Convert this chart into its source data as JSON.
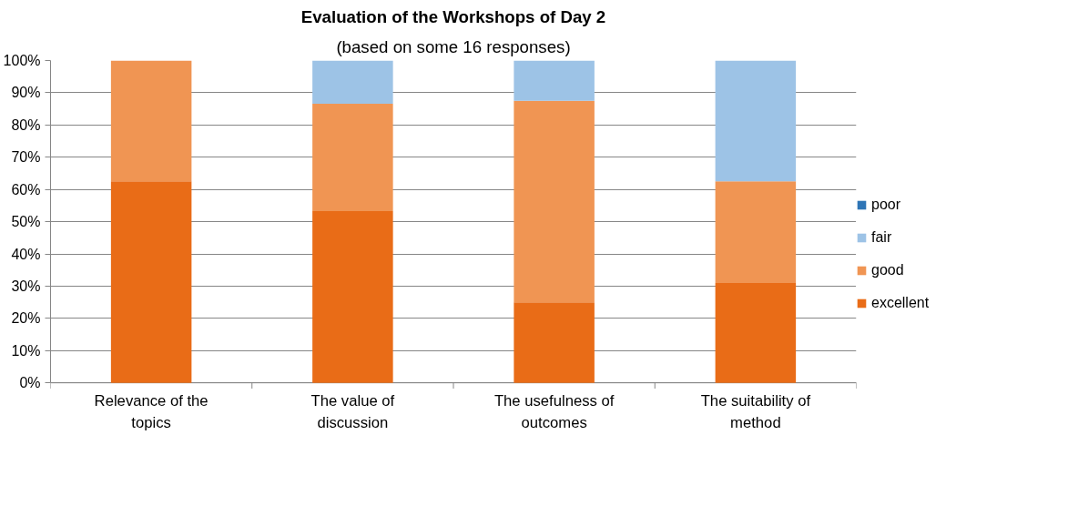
{
  "chart_data": {
    "type": "bar",
    "stacked": true,
    "title": "Evaluation of the Workshops of Day 2",
    "subtitle": "(based on some 16 responses)",
    "categories": [
      "Relevance of the topics",
      "The value of discussion",
      "The usefulness of outcomes",
      "The suitability of method"
    ],
    "series": [
      {
        "name": "excellent",
        "color": "#e96c17",
        "values": [
          62.5,
          53.3,
          25,
          31
        ]
      },
      {
        "name": "good",
        "color": "#f09553",
        "values": [
          37.5,
          33.3,
          62.5,
          31.5
        ]
      },
      {
        "name": "fair",
        "color": "#9dc3e6",
        "values": [
          0,
          13.4,
          12.5,
          37.5
        ]
      },
      {
        "name": "poor",
        "color": "#2e75b6",
        "values": [
          0,
          0,
          0,
          0
        ]
      }
    ],
    "ylim": [
      0,
      100
    ],
    "yticks": [
      {
        "value": 0,
        "label": "0%"
      },
      {
        "value": 10,
        "label": "10%"
      },
      {
        "value": 20,
        "label": "20%"
      },
      {
        "value": 30,
        "label": "30%"
      },
      {
        "value": 40,
        "label": "40%"
      },
      {
        "value": 50,
        "label": "50%"
      },
      {
        "value": 60,
        "label": "60%"
      },
      {
        "value": 70,
        "label": "70%"
      },
      {
        "value": 80,
        "label": "80%"
      },
      {
        "value": 90,
        "label": "90%"
      },
      {
        "value": 100,
        "label": "100%"
      }
    ],
    "grid": "y",
    "legend": "right"
  }
}
